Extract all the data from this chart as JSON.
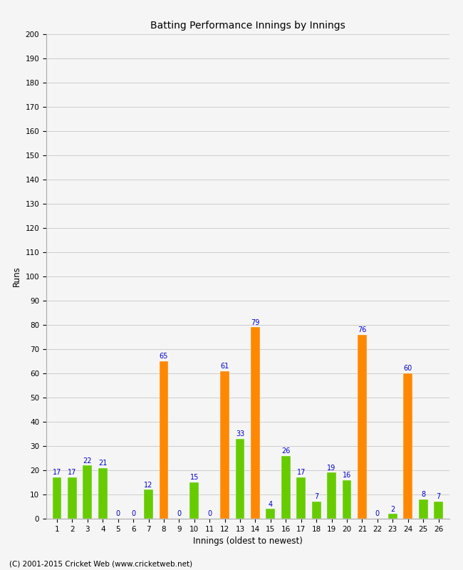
{
  "innings": [
    1,
    2,
    3,
    4,
    5,
    6,
    7,
    8,
    9,
    10,
    11,
    12,
    13,
    14,
    15,
    16,
    17,
    18,
    19,
    20,
    21,
    22,
    23,
    24,
    25,
    26
  ],
  "values": [
    17,
    17,
    22,
    21,
    0,
    0,
    12,
    65,
    0,
    15,
    0,
    61,
    33,
    79,
    4,
    26,
    17,
    7,
    19,
    16,
    76,
    0,
    2,
    60,
    8,
    7
  ],
  "colors": [
    "#66cc00",
    "#66cc00",
    "#66cc00",
    "#66cc00",
    "#66cc00",
    "#66cc00",
    "#66cc00",
    "#ff8800",
    "#66cc00",
    "#66cc00",
    "#66cc00",
    "#ff8800",
    "#66cc00",
    "#ff8800",
    "#66cc00",
    "#66cc00",
    "#66cc00",
    "#66cc00",
    "#66cc00",
    "#66cc00",
    "#ff8800",
    "#66cc00",
    "#66cc00",
    "#ff8800",
    "#66cc00",
    "#66cc00"
  ],
  "title": "Batting Performance Innings by Innings",
  "xlabel": "Innings (oldest to newest)",
  "ylabel": "Runs",
  "ylim": [
    0,
    200
  ],
  "yticks": [
    0,
    10,
    20,
    30,
    40,
    50,
    60,
    70,
    80,
    90,
    100,
    110,
    120,
    130,
    140,
    150,
    160,
    170,
    180,
    190,
    200
  ],
  "footer": "(C) 2001-2015 Cricket Web (www.cricketweb.net)",
  "label_color": "#0000cc",
  "label_fontsize": 7.0,
  "bar_width": 0.6,
  "bg_color": "#f5f5f5"
}
